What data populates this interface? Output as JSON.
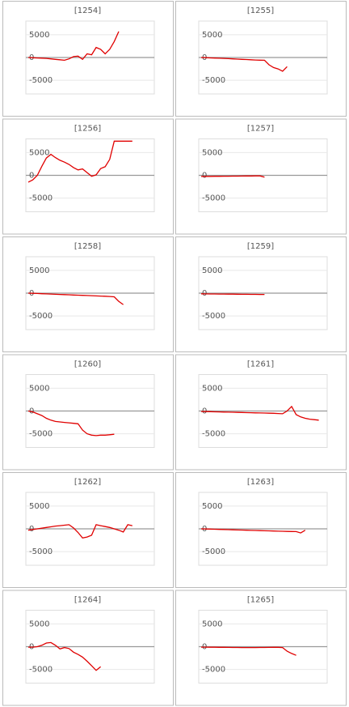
{
  "chart_data": [
    {
      "type": "line",
      "title": "[1254]",
      "color": "#e00000",
      "ylim": [
        -8000,
        8000
      ],
      "yticks": [
        5000,
        0,
        -5000
      ],
      "grid": true,
      "values": [
        0,
        -50,
        -100,
        -150,
        -200,
        -300,
        -400,
        -500,
        -600,
        -300,
        200,
        300,
        -400,
        800,
        600,
        2200,
        1800,
        800,
        1800,
        3500,
        5700
      ]
    },
    {
      "type": "line",
      "title": "[1255]",
      "color": "#e00000",
      "ylim": [
        -8000,
        8000
      ],
      "yticks": [
        5000,
        0,
        -5000
      ],
      "grid": true,
      "values": [
        0,
        -40,
        -80,
        -120,
        -160,
        -200,
        -250,
        -300,
        -350,
        -400,
        -450,
        -500,
        -550,
        -580,
        -600,
        -1600,
        -2200,
        -2500,
        -3000,
        -2000
      ]
    },
    {
      "type": "line",
      "title": "[1256]",
      "color": "#e00000",
      "ylim": [
        -8000,
        8000
      ],
      "yticks": [
        5000,
        0,
        -5000
      ],
      "grid": true,
      "values": [
        -1500,
        -1000,
        0,
        2000,
        3800,
        4600,
        3900,
        3300,
        2900,
        2400,
        1700,
        1200,
        1400,
        600,
        -200,
        100,
        1500,
        1900,
        3500,
        7500,
        7500,
        7500,
        7500,
        7500
      ]
    },
    {
      "type": "line",
      "title": "[1257]",
      "color": "#e00000",
      "ylim": [
        -8000,
        8000
      ],
      "yticks": [
        5000,
        0,
        -5000
      ],
      "grid": true,
      "values": [
        -250,
        -240,
        -230,
        -220,
        -210,
        -200,
        -190,
        -180,
        -170,
        -160,
        -150,
        -140,
        -130,
        -120,
        -400
      ]
    },
    {
      "type": "line",
      "title": "[1258]",
      "color": "#e00000",
      "ylim": [
        -8000,
        8000
      ],
      "yticks": [
        5000,
        0,
        -5000
      ],
      "grid": true,
      "values": [
        0,
        -40,
        -80,
        -120,
        -160,
        -200,
        -240,
        -280,
        -320,
        -360,
        -400,
        -440,
        -480,
        -520,
        -560,
        -600,
        -640,
        -680,
        -720,
        -800,
        -1800,
        -2500
      ]
    },
    {
      "type": "line",
      "title": "[1259]",
      "color": "#e00000",
      "ylim": [
        -8000,
        8000
      ],
      "yticks": [
        5000,
        0,
        -5000
      ],
      "grid": true,
      "values": [
        -150,
        -160,
        -170,
        -180,
        -190,
        -200,
        -210,
        -220,
        -230,
        -240,
        -250,
        -260,
        -270,
        -280,
        -290
      ]
    },
    {
      "type": "line",
      "title": "[1260]",
      "color": "#e00000",
      "ylim": [
        -8000,
        8000
      ],
      "yticks": [
        5000,
        0,
        -5000
      ],
      "grid": true,
      "values": [
        0,
        -200,
        -600,
        -1000,
        -1600,
        -2000,
        -2300,
        -2400,
        -2500,
        -2600,
        -2700,
        -2800,
        -4200,
        -5000,
        -5300,
        -5400,
        -5300,
        -5300,
        -5200,
        -5100
      ]
    },
    {
      "type": "line",
      "title": "[1261]",
      "color": "#e00000",
      "ylim": [
        -8000,
        8000
      ],
      "yticks": [
        5000,
        0,
        -5000
      ],
      "grid": true,
      "values": [
        -100,
        -125,
        -150,
        -175,
        -200,
        -225,
        -250,
        -275,
        -300,
        -325,
        -350,
        -375,
        -400,
        -425,
        -450,
        -475,
        -500,
        -550,
        -600,
        0,
        1000,
        -800,
        -1300,
        -1600,
        -1800,
        -1900,
        -2000
      ]
    },
    {
      "type": "line",
      "title": "[1262]",
      "color": "#e00000",
      "ylim": [
        -8000,
        8000
      ],
      "yticks": [
        5000,
        0,
        -5000
      ],
      "grid": true,
      "values": [
        -300,
        -150,
        0,
        150,
        300,
        450,
        600,
        700,
        800,
        900,
        200,
        -800,
        -2000,
        -1800,
        -1400,
        900,
        700,
        500,
        300,
        0,
        -300,
        -700,
        900,
        700
      ]
    },
    {
      "type": "line",
      "title": "[1263]",
      "color": "#e00000",
      "ylim": [
        -8000,
        8000
      ],
      "yticks": [
        5000,
        0,
        -5000
      ],
      "grid": true,
      "values": [
        0,
        -30,
        -60,
        -90,
        -120,
        -150,
        -180,
        -210,
        -240,
        -270,
        -300,
        -330,
        -360,
        -390,
        -420,
        -450,
        -480,
        -510,
        -540,
        -570,
        -590,
        -600,
        -900,
        -300
      ]
    },
    {
      "type": "line",
      "title": "[1264]",
      "color": "#e00000",
      "ylim": [
        -8000,
        8000
      ],
      "yticks": [
        5000,
        0,
        -5000
      ],
      "grid": true,
      "values": [
        -100,
        -100,
        0,
        300,
        800,
        900,
        300,
        -500,
        -200,
        -400,
        -1200,
        -1700,
        -2300,
        -3200,
        -4200,
        -5200,
        -4400
      ]
    },
    {
      "type": "line",
      "title": "[1265]",
      "color": "#e00000",
      "ylim": [
        -8000,
        8000
      ],
      "yticks": [
        5000,
        0,
        -5000
      ],
      "grid": true,
      "values": [
        -100,
        -110,
        -120,
        -130,
        -140,
        -150,
        -160,
        -170,
        -180,
        -190,
        -200,
        -200,
        -190,
        -180,
        -170,
        -160,
        -150,
        -150,
        -200,
        -1000,
        -1500,
        -1900
      ]
    }
  ]
}
